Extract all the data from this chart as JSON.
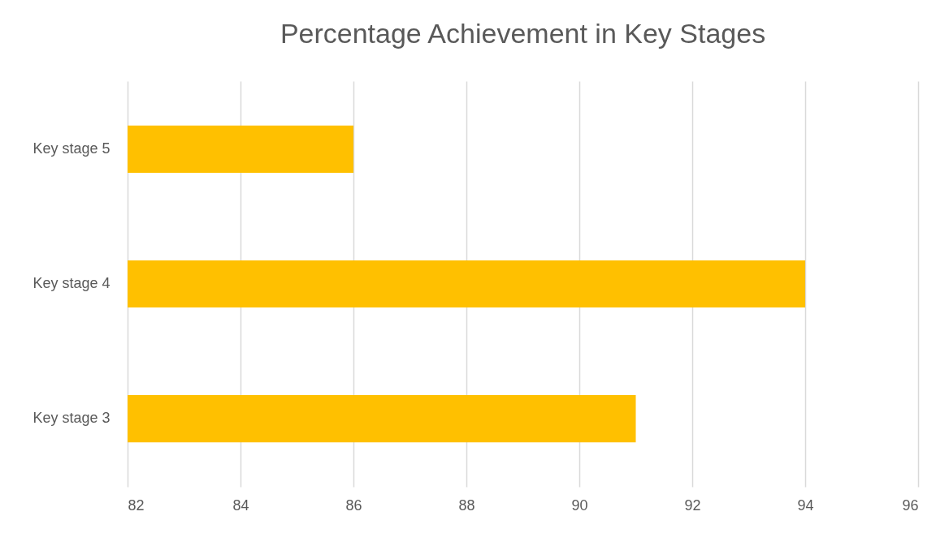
{
  "chart_data": {
    "type": "bar",
    "orientation": "horizontal",
    "title": "Percentage Achievement in Key Stages",
    "categories": [
      "Key stage 5",
      "Key stage 4",
      "Key stage 3"
    ],
    "values": [
      86,
      94,
      91
    ],
    "color": "#ffc000",
    "xlim": [
      82,
      96
    ],
    "xticks": [
      82,
      84,
      86,
      88,
      90,
      92,
      94,
      96
    ],
    "grid": "x"
  }
}
